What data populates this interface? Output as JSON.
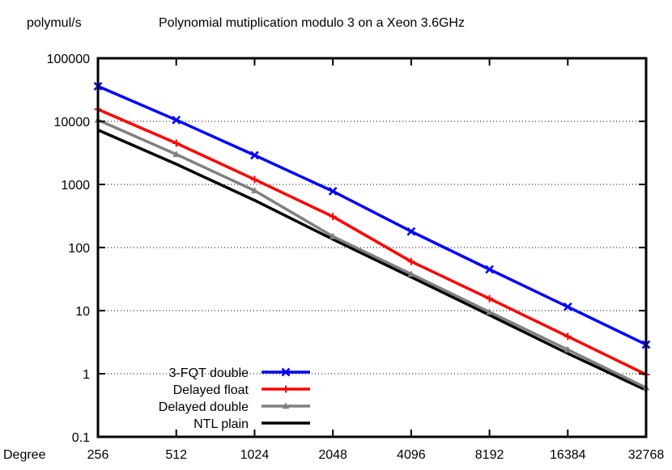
{
  "chart_data": {
    "type": "line",
    "title": "Polynomial mutiplication modulo 3 on a Xeon 3.6GHz",
    "ylabel": "polymul/s",
    "xlabel": "Degree",
    "x_scale": "log2",
    "y_scale": "log10",
    "categories": [
      "256",
      "512",
      "1024",
      "2048",
      "4096",
      "8192",
      "16384",
      "32768"
    ],
    "x": [
      256,
      512,
      1024,
      2048,
      4096,
      8192,
      16384,
      32768
    ],
    "yticks": [
      "0.1",
      "1",
      "10",
      "100",
      "1000",
      "10000",
      "100000"
    ],
    "ylim": [
      0.1,
      100000
    ],
    "grid": "horizontal dotted",
    "legend_position": "bottom-left",
    "series": [
      {
        "name": "3-FQT double",
        "color": "#0000ff",
        "marker": "x",
        "values": [
          36000,
          10500,
          2900,
          780,
          180,
          45,
          11.5,
          2.9
        ]
      },
      {
        "name": "Delayed float",
        "color": "#ff0000",
        "marker": "plus",
        "values": [
          15500,
          4500,
          1200,
          310,
          60,
          15.5,
          3.9,
          0.97
        ]
      },
      {
        "name": "Delayed double",
        "color": "#808080",
        "marker": "triangle",
        "values": [
          10500,
          3000,
          800,
          150,
          38,
          9.5,
          2.4,
          0.6
        ]
      },
      {
        "name": "NTL plain",
        "color": "#000000",
        "marker": "none",
        "values": [
          7300,
          2100,
          560,
          135,
          34,
          8.5,
          2.1,
          0.55
        ]
      }
    ]
  }
}
